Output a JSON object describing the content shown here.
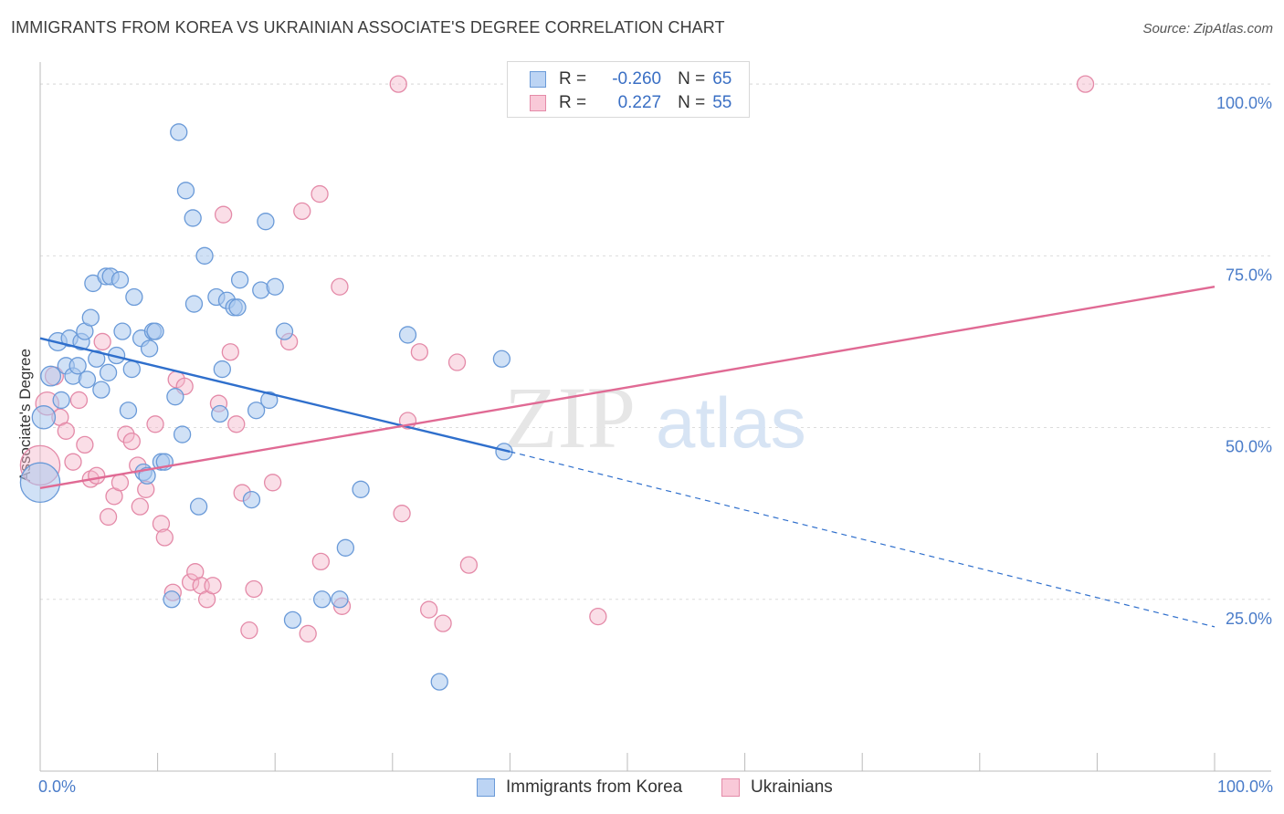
{
  "title": "IMMIGRANTS FROM KOREA VS UKRAINIAN ASSOCIATE'S DEGREE CORRELATION CHART",
  "source": "Source: ZipAtlas.com",
  "watermark": {
    "zip": "ZIP",
    "atlas": "atlas"
  },
  "legend": {
    "r_label": "R =",
    "n_label": "N =",
    "korea": {
      "r": "-0.260",
      "n": "65"
    },
    "ukr": {
      "r": "0.227",
      "n": "55"
    }
  },
  "colors": {
    "korea_fill": "#a9c8ef",
    "korea_line": "#2f6fcc",
    "ukr_fill": "#f5b6c9",
    "ukr_line": "#e06a94",
    "tick_text": "#4a7cc9",
    "grid": "#dcdcdc"
  },
  "chart_data": {
    "type": "scatter",
    "title": "IMMIGRANTS FROM KOREA VS UKRAINIAN ASSOCIATE'S DEGREE CORRELATION CHART",
    "xlabel": "",
    "ylabel": "Associate's Degree",
    "xlim": [
      0,
      100
    ],
    "ylim": [
      0,
      104
    ],
    "x_tick_labels": [
      "0.0%",
      "100.0%"
    ],
    "y_ticks": [
      25,
      50,
      75,
      100
    ],
    "y_tick_labels": [
      "25.0%",
      "50.0%",
      "75.0%",
      "100.0%"
    ],
    "grid": true,
    "legend_position": "top-center",
    "series": [
      {
        "name": "Immigrants from Korea",
        "r": -0.26,
        "n": 65,
        "trend": {
          "x0": 0,
          "y0": 63.0,
          "x1": 40,
          "y1": 46.5,
          "dashed_to_x": 100,
          "dashed_to_y": 21.0
        },
        "points": [
          [
            0,
            42,
            24
          ],
          [
            0.3,
            51.5,
            14
          ],
          [
            0.9,
            57.5,
            12
          ],
          [
            1.5,
            62.5,
            11
          ],
          [
            1.8,
            54,
            10
          ],
          [
            2.2,
            59,
            10
          ],
          [
            2.5,
            63,
            10
          ],
          [
            2.8,
            57.5,
            10
          ],
          [
            3.2,
            59,
            10
          ],
          [
            3.5,
            62.5,
            10
          ],
          [
            3.8,
            64,
            10
          ],
          [
            4.0,
            57,
            10
          ],
          [
            4.3,
            66,
            10
          ],
          [
            4.5,
            71,
            10
          ],
          [
            4.8,
            60,
            10
          ],
          [
            5.2,
            55.5,
            10
          ],
          [
            5.6,
            72,
            10
          ],
          [
            5.8,
            58,
            10
          ],
          [
            6.0,
            72,
            10
          ],
          [
            6.5,
            60.5,
            10
          ],
          [
            6.8,
            71.5,
            10
          ],
          [
            7.0,
            64,
            10
          ],
          [
            7.5,
            52.5,
            10
          ],
          [
            7.8,
            58.5,
            10
          ],
          [
            8.0,
            69,
            10
          ],
          [
            8.6,
            63,
            10
          ],
          [
            8.8,
            43.5,
            10
          ],
          [
            9.1,
            43,
            10
          ],
          [
            9.3,
            61.5,
            10
          ],
          [
            9.6,
            64,
            10
          ],
          [
            9.8,
            64,
            10
          ],
          [
            10.3,
            45,
            10
          ],
          [
            10.6,
            45,
            10
          ],
          [
            11.2,
            25,
            10
          ],
          [
            11.5,
            54.5,
            10
          ],
          [
            11.8,
            93,
            10
          ],
          [
            12.1,
            49,
            10
          ],
          [
            12.4,
            84.5,
            10
          ],
          [
            13.0,
            80.5,
            10
          ],
          [
            13.1,
            68,
            10
          ],
          [
            13.5,
            38.5,
            10
          ],
          [
            14.0,
            75,
            10
          ],
          [
            15.0,
            69,
            10
          ],
          [
            15.3,
            52,
            10
          ],
          [
            15.5,
            58.5,
            10
          ],
          [
            15.9,
            68.5,
            10
          ],
          [
            16.5,
            67.5,
            10
          ],
          [
            16.8,
            67.5,
            10
          ],
          [
            17.0,
            71.5,
            10
          ],
          [
            18.0,
            39.5,
            10
          ],
          [
            18.4,
            52.5,
            10
          ],
          [
            18.8,
            70,
            10
          ],
          [
            19.2,
            80,
            10
          ],
          [
            19.5,
            54,
            10
          ],
          [
            20.0,
            70.5,
            10
          ],
          [
            20.8,
            64,
            10
          ],
          [
            21.5,
            22,
            10
          ],
          [
            25.5,
            25,
            10
          ],
          [
            26.0,
            32.5,
            10
          ],
          [
            27.3,
            41,
            10
          ],
          [
            31.3,
            63.5,
            10
          ],
          [
            34.0,
            13,
            10
          ],
          [
            39.3,
            60,
            10
          ],
          [
            39.5,
            46.5,
            10
          ],
          [
            24.0,
            25,
            10
          ]
        ]
      },
      {
        "name": "Ukrainians",
        "r": 0.227,
        "n": 55,
        "trend": {
          "x0": 0,
          "y0": 41.2,
          "x1": 100,
          "y1": 70.5
        },
        "points": [
          [
            0,
            44.5,
            24
          ],
          [
            0.6,
            53.5,
            14
          ],
          [
            1.2,
            57.5,
            11
          ],
          [
            1.7,
            51.5,
            10
          ],
          [
            2.2,
            49.5,
            10
          ],
          [
            2.8,
            45,
            10
          ],
          [
            3.3,
            54,
            10
          ],
          [
            3.8,
            47.5,
            10
          ],
          [
            4.3,
            42.5,
            10
          ],
          [
            4.8,
            43,
            10
          ],
          [
            5.3,
            62.5,
            10
          ],
          [
            5.8,
            37,
            10
          ],
          [
            6.3,
            40,
            10
          ],
          [
            6.8,
            42,
            10
          ],
          [
            7.3,
            49,
            10
          ],
          [
            7.8,
            48,
            10
          ],
          [
            8.3,
            44.5,
            10
          ],
          [
            8.5,
            38.5,
            10
          ],
          [
            9.0,
            41,
            10
          ],
          [
            9.8,
            50.5,
            10
          ],
          [
            10.3,
            36,
            10
          ],
          [
            10.6,
            34,
            10
          ],
          [
            11.3,
            26,
            10
          ],
          [
            11.6,
            57,
            10
          ],
          [
            12.3,
            56,
            10
          ],
          [
            12.8,
            27.5,
            10
          ],
          [
            13.2,
            29,
            10
          ],
          [
            13.7,
            27,
            10
          ],
          [
            14.2,
            25,
            10
          ],
          [
            14.7,
            27,
            10
          ],
          [
            15.2,
            53.5,
            10
          ],
          [
            15.6,
            81,
            10
          ],
          [
            16.2,
            61,
            10
          ],
          [
            16.7,
            50.5,
            10
          ],
          [
            17.2,
            40.5,
            10
          ],
          [
            17.8,
            20.5,
            10
          ],
          [
            18.2,
            26.5,
            10
          ],
          [
            19.8,
            42,
            10
          ],
          [
            21.2,
            62.5,
            10
          ],
          [
            22.3,
            81.5,
            10
          ],
          [
            22.8,
            20,
            10
          ],
          [
            23.8,
            84,
            10
          ],
          [
            23.9,
            30.5,
            10
          ],
          [
            25.5,
            70.5,
            10
          ],
          [
            25.7,
            24,
            10
          ],
          [
            30.5,
            100,
            10
          ],
          [
            30.8,
            37.5,
            10
          ],
          [
            31.3,
            51,
            10
          ],
          [
            32.3,
            61,
            10
          ],
          [
            33.1,
            23.5,
            10
          ],
          [
            34.3,
            21.5,
            10
          ],
          [
            35.5,
            59.5,
            10
          ],
          [
            36.5,
            30,
            10
          ],
          [
            47.5,
            22.5,
            10
          ],
          [
            89.0,
            100,
            10
          ]
        ]
      }
    ]
  },
  "bottom_legend": {
    "korea": "Immigrants from Korea",
    "ukr": "Ukrainians"
  }
}
